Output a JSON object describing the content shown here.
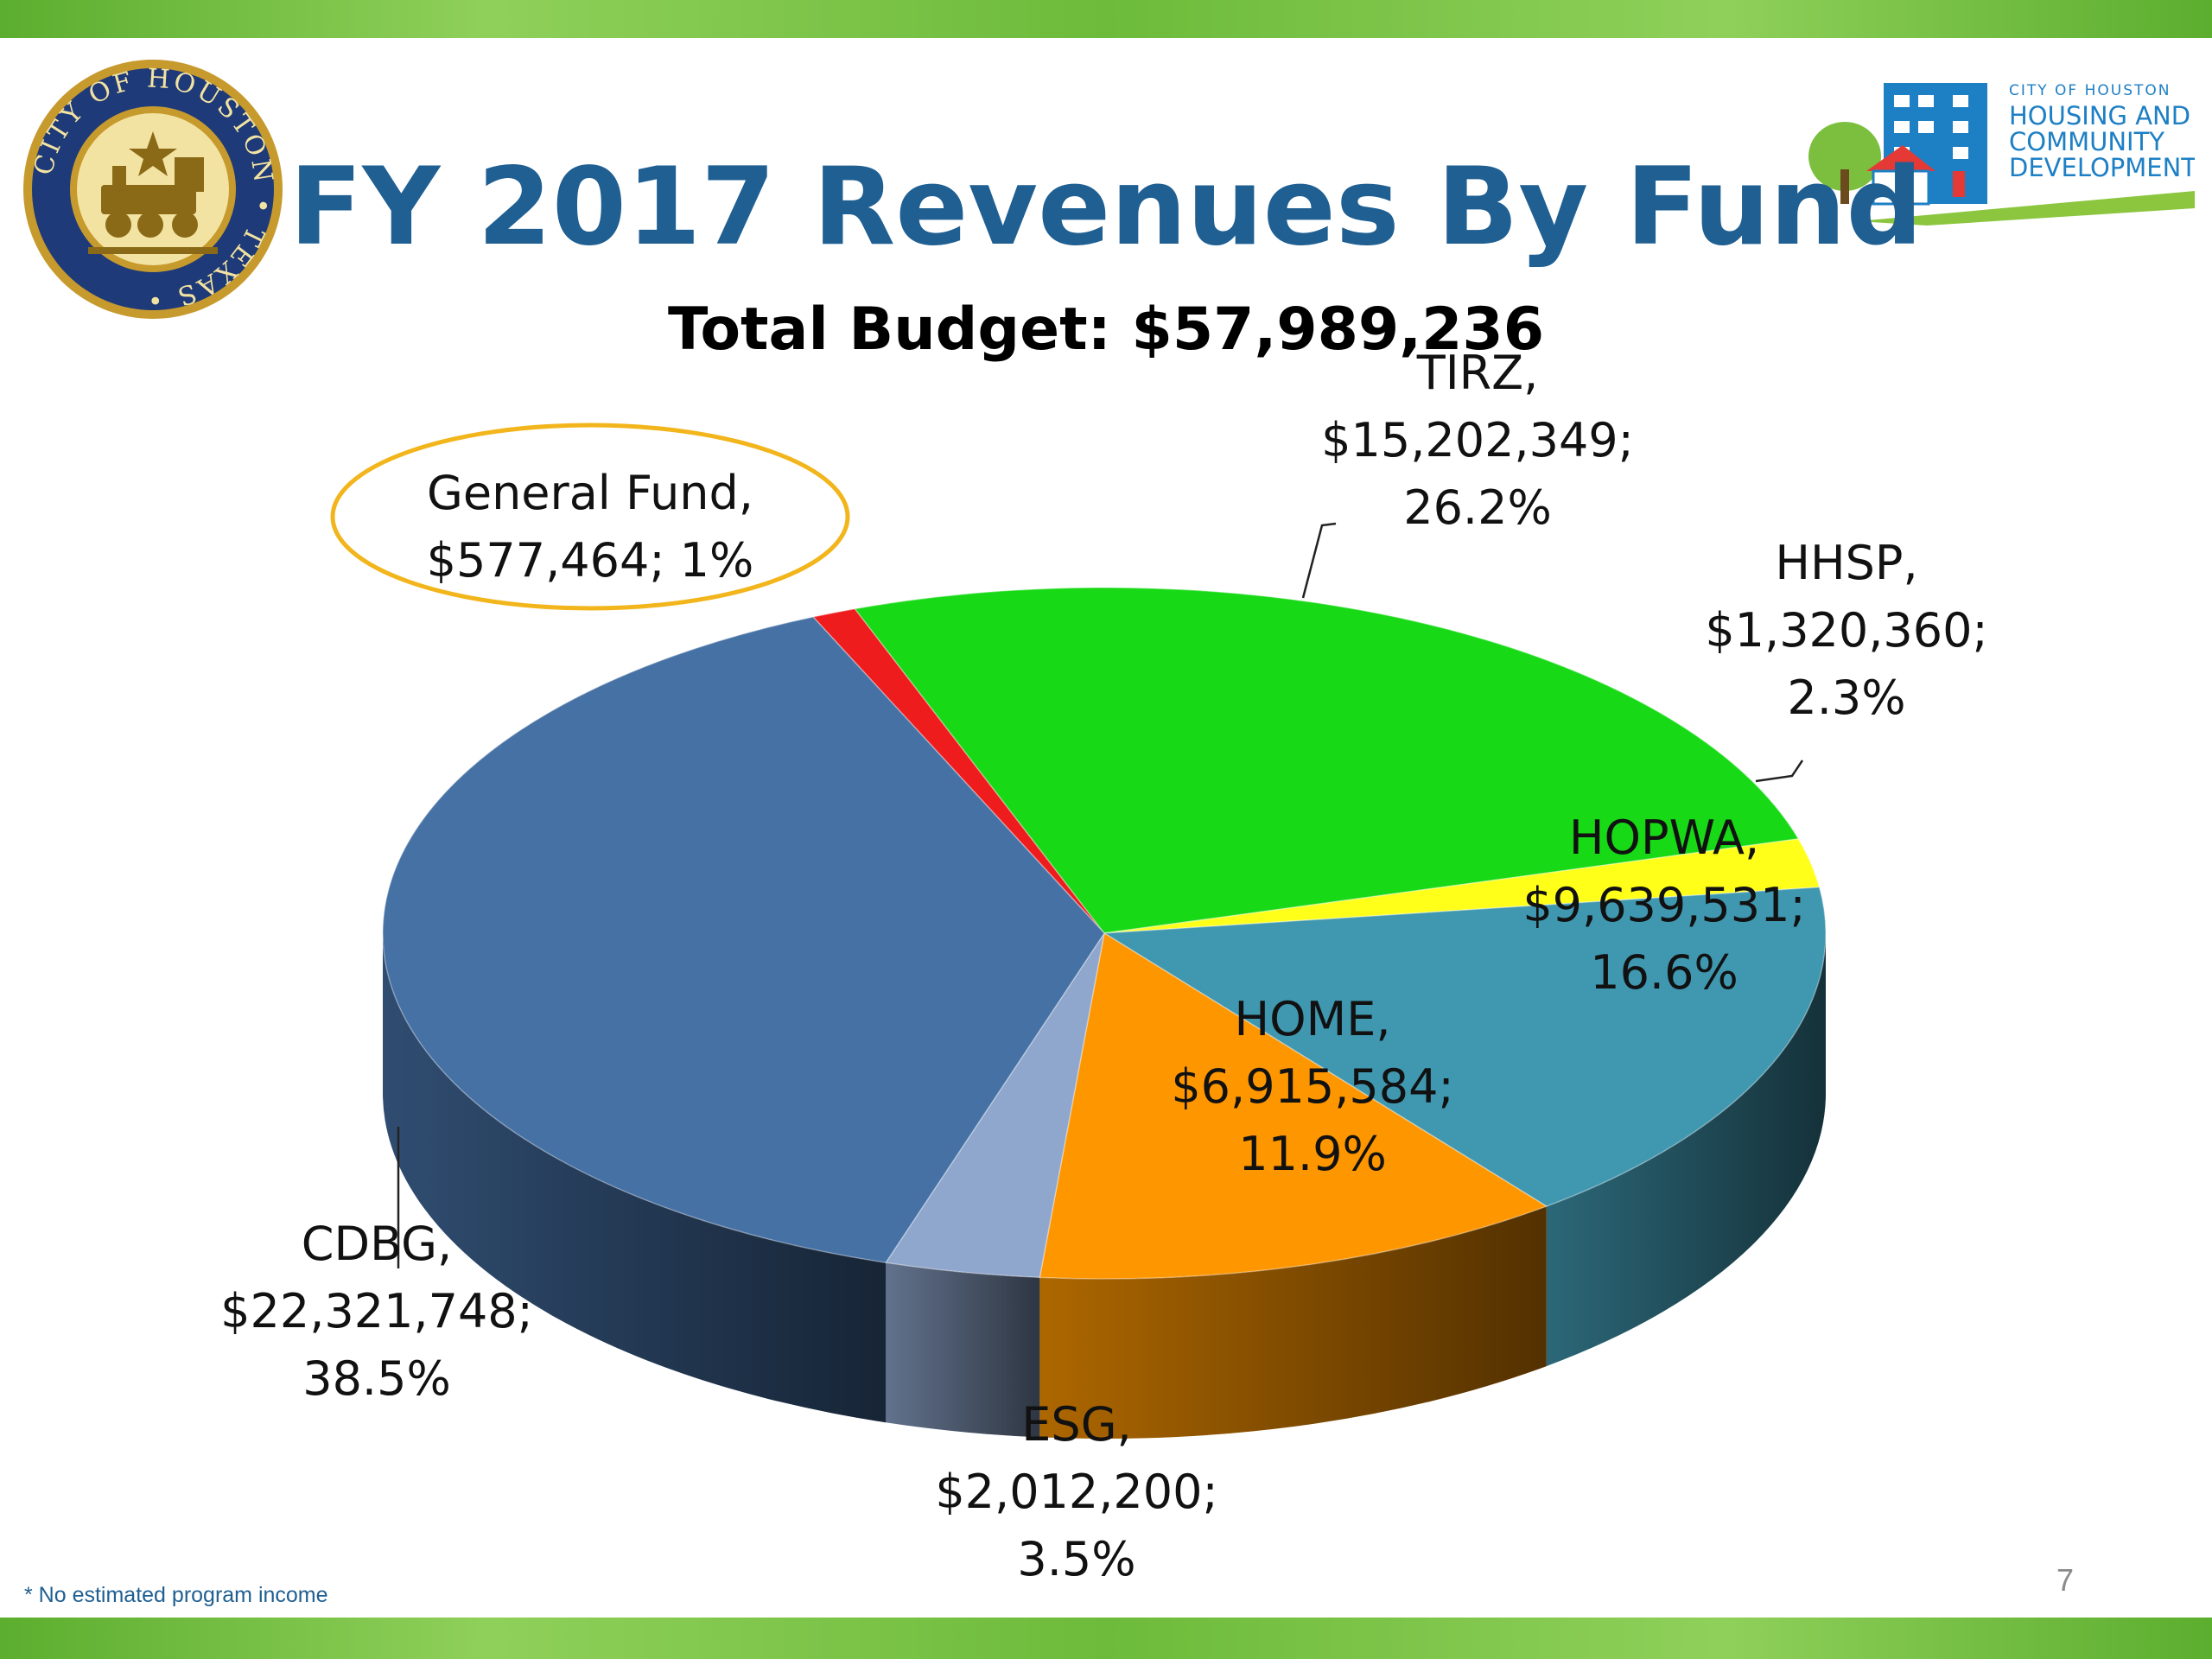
{
  "slide": {
    "title": "FY 2017 Revenues By Fund",
    "subtitle": "Total Budget:  $57,989,236",
    "footnote": "* No estimated program income",
    "page_number": "7",
    "logo_seal_text": "CITY OF HOUSTON • TEXAS •",
    "logo_hcd": {
      "line1": "CITY OF HOUSTON",
      "line2": "HOUSING AND",
      "line3": "COMMUNITY",
      "line4": "DEVELOPMENT"
    },
    "colors": {
      "title": "#1f5f92",
      "bars": "#6dbb3b",
      "highlight_ring": "#f2b51b"
    }
  },
  "chart_data": {
    "type": "pie",
    "style": "3d",
    "total": 57989236,
    "series": [
      {
        "label": "General Fund",
        "value": 577464,
        "value_text": "$577,464",
        "percent_text": "1%",
        "color": "#ee1c1c",
        "highlighted": true
      },
      {
        "label": "TIRZ",
        "value": 15202349,
        "value_text": "$15,202,349",
        "percent_text": "26.2%",
        "color": "#17d916"
      },
      {
        "label": "HHSP",
        "value": 1320360,
        "value_text": "$1,320,360",
        "percent_text": "2.3%",
        "color": "#ffff19"
      },
      {
        "label": "HOPWA",
        "value": 9639531,
        "value_text": "$9,639,531",
        "percent_text": "16.6%",
        "color": "#4097b0"
      },
      {
        "label": "HOME",
        "value": 6915584,
        "value_text": "$6,915,584",
        "percent_text": "11.9%",
        "color": "#fe9600"
      },
      {
        "label": "ESG",
        "value": 2012200,
        "value_text": "$2,012,200",
        "percent_text": "3.5%",
        "color": "#8fa6cd"
      },
      {
        "label": "CDBG",
        "value": 22321748,
        "value_text": "$22,321,748",
        "percent_text": "38.5%",
        "color": "#4671a5"
      }
    ]
  }
}
